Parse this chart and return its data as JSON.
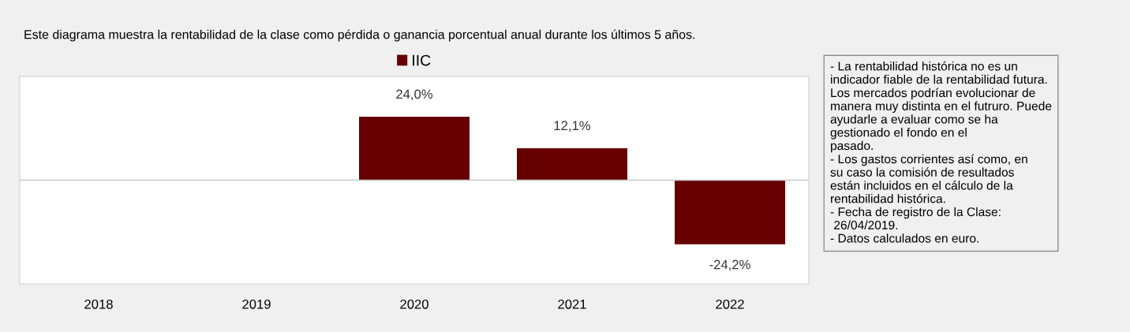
{
  "chart_data": {
    "type": "bar",
    "title": "Este diagrama muestra la rentabilidad de la clase como pérdida o ganancia porcentual anual durante los últimos 5 años.",
    "categories": [
      "2018",
      "2019",
      "2020",
      "2021",
      "2022"
    ],
    "series": [
      {
        "name": "IIC",
        "color": "#660000",
        "values": [
          null,
          null,
          24.0,
          12.1,
          -24.2
        ],
        "value_labels": [
          null,
          null,
          "24,0%",
          "12,1%",
          "-24,2%"
        ]
      }
    ],
    "legend": "top",
    "grid": false,
    "annotations": [
      "- La rentabilidad histórica no es un\nindicador fiable de la rentabilidad futura.\nLos mercados podrían evolucionar de\nmanera muy distinta en el futruro. Puede\nayudarle a evaluar como se ha\ngestionado el fondo en el\npasado.\n- Los gastos corrientes así como, en\nsu caso la comisión de resultados\nestán incluidos en el cálculo de la\nrentabilidad histórica.\n- Fecha de registro de la Clase:\n 26/04/2019.\n- Datos calculados en euro."
    ]
  }
}
